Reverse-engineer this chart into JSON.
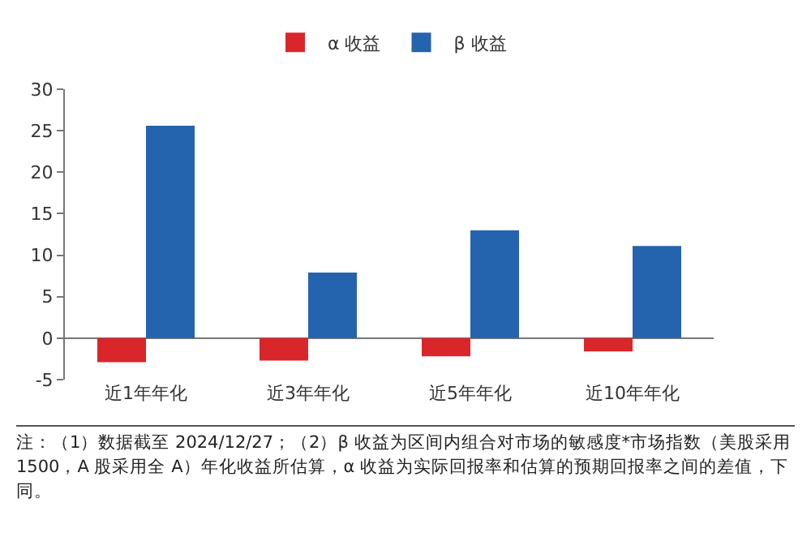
{
  "chart_data": {
    "type": "bar",
    "categories": [
      "近1年年化",
      "近3年年化",
      "近5年年化",
      "近10年年化"
    ],
    "series": [
      {
        "name": "α 收益",
        "color": "#d9262b",
        "values": [
          -2.9,
          -2.7,
          -2.2,
          -1.6
        ]
      },
      {
        "name": "β 收益",
        "color": "#2463ae",
        "values": [
          25.6,
          7.9,
          13.0,
          11.1
        ]
      }
    ],
    "ylim": [
      -5,
      30
    ],
    "yticks": [
      -5,
      0,
      5,
      10,
      15,
      20,
      25,
      30
    ],
    "grid": false,
    "legend": "top",
    "annotations": [
      "注：（1）数据截至 2024/12/27；（2）β 收益为区间内组合对市场的敏感度*市场指数（美股采用 1500，A 股采用全 A）年化收益所估算，α 收益为实际回报率和估算的预期回报率之间的差值，下同。"
    ]
  }
}
